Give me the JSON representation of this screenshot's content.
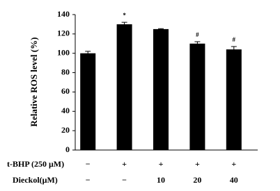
{
  "chart_data": {
    "type": "bar",
    "y_label": "Relative ROS level (%)",
    "values": [
      100,
      130,
      125,
      110,
      104
    ],
    "errors": [
      2,
      2,
      0.5,
      2,
      3
    ],
    "annotations": [
      null,
      "*",
      null,
      "#",
      "#"
    ],
    "color": "#000000",
    "ylim": [
      0,
      140
    ],
    "yticks": [
      0,
      20,
      40,
      60,
      80,
      100,
      120,
      140
    ],
    "treatments": [
      {
        "name": "t-BHP (250 μM)",
        "labels": [
          "−",
          "+",
          "+",
          "+",
          "+"
        ]
      },
      {
        "name": "Dieckol(μM)",
        "labels": [
          "−",
          "−",
          "10",
          "20",
          "40"
        ]
      }
    ]
  }
}
